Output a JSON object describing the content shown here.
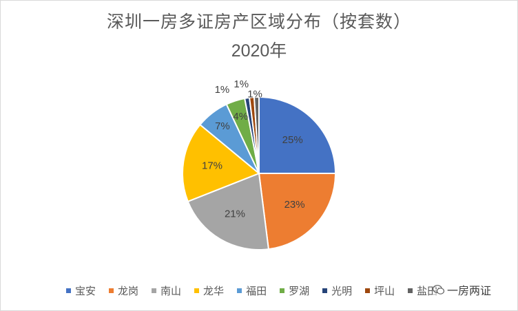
{
  "chart": {
    "title": "深圳一房多证房产区域分布（按套数）",
    "subtitle": "2020年"
  },
  "chart_data": {
    "type": "pie",
    "title": "深圳一房多证房产区域分布（按套数）",
    "subtitle": "2020年",
    "categories": [
      "宝安",
      "龙岗",
      "南山",
      "龙华",
      "福田",
      "罗湖",
      "光明",
      "坪山",
      "盐田"
    ],
    "values": [
      25,
      23,
      21,
      17,
      7,
      4,
      1,
      1,
      1
    ],
    "labels": [
      "25%",
      "23%",
      "21%",
      "17%",
      "7%",
      "4%",
      "1%",
      "1%",
      "1%"
    ],
    "colors": [
      "#4472c4",
      "#ed7d31",
      "#a5a5a5",
      "#ffc000",
      "#5b9bd5",
      "#70ad47",
      "#264478",
      "#9e480e",
      "#636363"
    ],
    "start_angle_deg": 0,
    "direction": "clockwise",
    "legend_position": "bottom"
  },
  "watermark": {
    "text": "一房两证",
    "icon": "wechat-logo-icon"
  }
}
